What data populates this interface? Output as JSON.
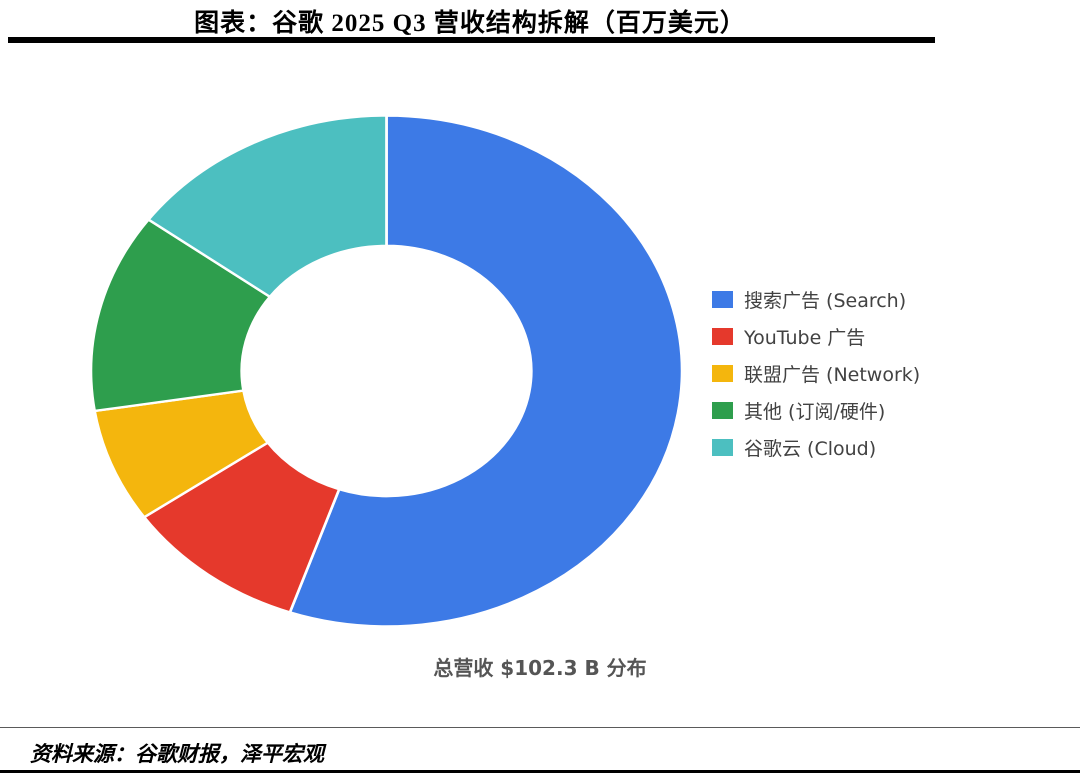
{
  "header": {
    "title": "图表：谷歌 2025 Q3 营收结构拆解（百万美元）"
  },
  "chart_data": {
    "type": "pie",
    "donut": true,
    "start_angle_deg": 0,
    "direction": "clockwise",
    "inner_radius_ratio": 0.49,
    "legend_position": "right",
    "total_label": "总营收 $102.3 B 分布",
    "total_value_busd": 102.3,
    "series": [
      {
        "label": "搜索广告 (Search)",
        "percent": 55.3,
        "value_musd": 56600,
        "color": "#3D7AE6"
      },
      {
        "label": "YouTube 广告",
        "percent": 10.0,
        "value_musd": 10200,
        "color": "#E5392C"
      },
      {
        "label": "联盟广告 (Network)",
        "percent": 7.2,
        "value_musd": 7400,
        "color": "#F4B60D"
      },
      {
        "label": "其他 (订阅/硬件)",
        "percent": 12.6,
        "value_musd": 12900,
        "color": "#2E9E4D"
      },
      {
        "label": "谷歌云 (Cloud)",
        "percent": 14.9,
        "value_musd": 15200,
        "color": "#4CBFC0"
      }
    ]
  },
  "footer": {
    "source": "资料来源：谷歌财报，泽平宏观"
  }
}
